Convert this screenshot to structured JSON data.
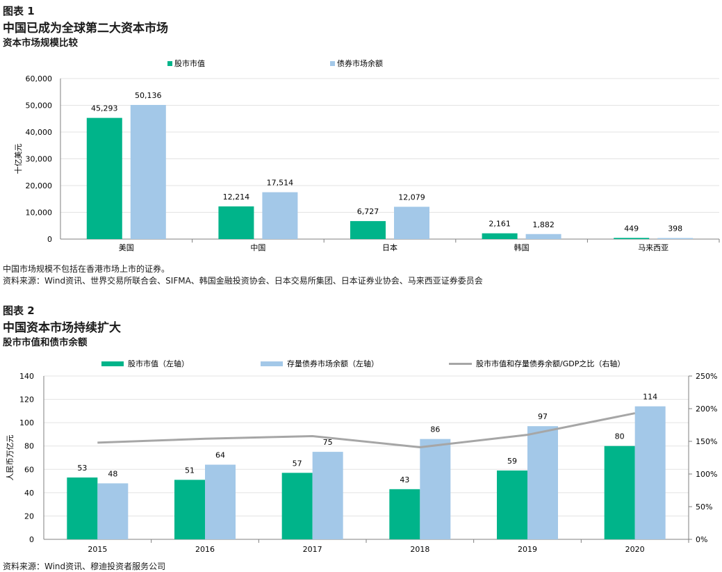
{
  "figure1": {
    "label": "图表 1",
    "title": "中国已成为全球第二大资本市场",
    "subtitle": "资本市场规模比较",
    "note": "中国市场规模不包括在香港市场上市的证券。",
    "source": "资料来源：Wind资讯、世界交易所联合会、SIFMA、韩国金融投资协会、日本交易所集团、日本证券业协会、马来西亚证券委员会"
  },
  "figure2": {
    "label": "图表 2",
    "title": "中国资本市场持续扩大",
    "subtitle": "股市市值和债市余额",
    "source": "资料来源：Wind资讯、穆迪投资者服务公司"
  },
  "colors": {
    "green": "#00b48a",
    "blue": "#a3c8e8",
    "gray": "#a6a6a6"
  },
  "chart_data": [
    {
      "type": "bar",
      "categories": [
        "美国",
        "中国",
        "日本",
        "韩国",
        "马来西亚"
      ],
      "series": [
        {
          "name": "股市市值",
          "values": [
            45293,
            12214,
            6727,
            2161,
            449
          ]
        },
        {
          "name": "债券市场余额",
          "values": [
            50136,
            17514,
            12079,
            1882,
            398
          ]
        }
      ],
      "ylabel": "十亿美元",
      "ylim": [
        0,
        60000
      ],
      "yticks": [
        "0",
        "10,000",
        "20,000",
        "30,000",
        "40,000",
        "50,000",
        "60,000"
      ],
      "value_labels": [
        [
          "45,293",
          "12,214",
          "6,727",
          "2,161",
          "449"
        ],
        [
          "50,136",
          "17,514",
          "12,079",
          "1,882",
          "398"
        ]
      ],
      "grid": true,
      "legend": "top"
    },
    {
      "type": "bar",
      "categories": [
        "2015",
        "2016",
        "2017",
        "2018",
        "2019",
        "2020"
      ],
      "series": [
        {
          "name": "股市市值（左轴）",
          "values": [
            53,
            51,
            57,
            43,
            59,
            80
          ]
        },
        {
          "name": "存量债券市场余额（左轴）",
          "values": [
            48,
            64,
            75,
            86,
            97,
            114
          ]
        },
        {
          "name": "股市市值和存量债券余额/GDP之比（右轴）",
          "type": "line",
          "axis": "right",
          "values": [
            148,
            154,
            158,
            141,
            160,
            193
          ]
        }
      ],
      "ylabel": "人民币万亿元",
      "ylim": [
        0,
        140
      ],
      "yticks": [
        "0",
        "20",
        "40",
        "60",
        "80",
        "100",
        "120",
        "140"
      ],
      "y2lim": [
        0,
        250
      ],
      "y2ticks": [
        "0%",
        "50%",
        "100%",
        "150%",
        "200%",
        "250%"
      ],
      "grid": true,
      "legend": "top"
    }
  ]
}
